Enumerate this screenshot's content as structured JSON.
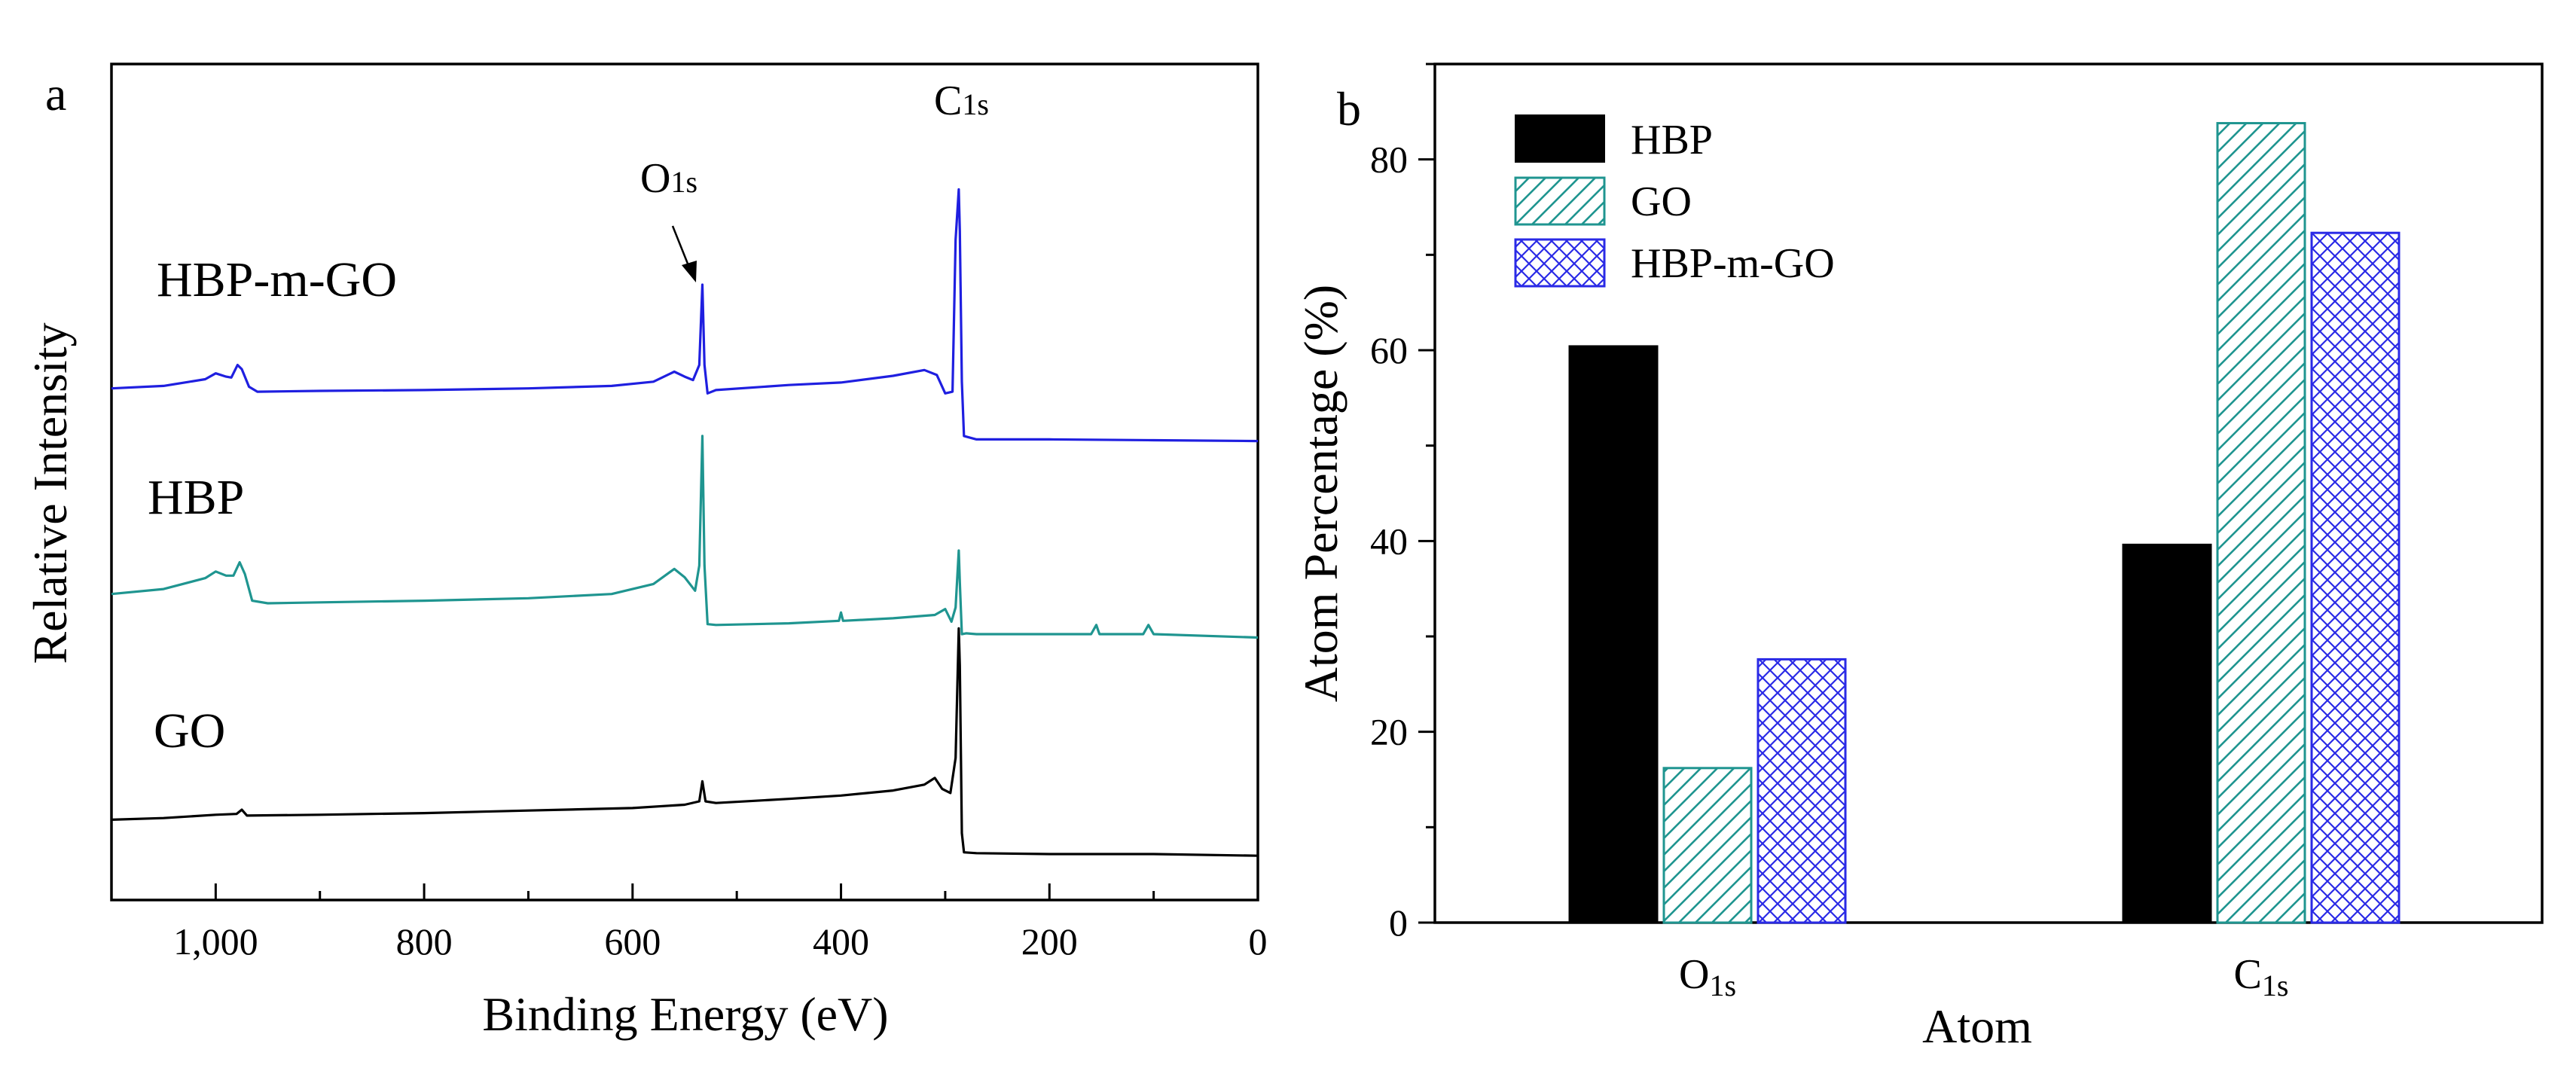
{
  "chart_data": [
    {
      "panel_label": "a",
      "type": "line",
      "title": "",
      "xlabel": "Binding Energy (eV)",
      "ylabel": "Relative Intensity",
      "xlim": [
        1100,
        0
      ],
      "ylim": [
        0,
        100
      ],
      "x_reversed": true,
      "x_ticks": [
        1000,
        800,
        600,
        400,
        200,
        0
      ],
      "x_tick_labels": [
        "1,000",
        "800",
        "600",
        "400",
        "200",
        "0"
      ],
      "peak_labels": [
        {
          "name": "O",
          "sub": "1s",
          "x": 532
        },
        {
          "name": "C",
          "sub": "1s",
          "x": 285
        }
      ],
      "series": [
        {
          "name": "HBP-m-GO",
          "color": "#1f1fe0",
          "points": [
            [
              1100,
              61.2
            ],
            [
              1050,
              61.5
            ],
            [
              1010,
              62.3
            ],
            [
              1000,
              63
            ],
            [
              990,
              62.6
            ],
            [
              985,
              62.5
            ],
            [
              979,
              64
            ],
            [
              975,
              63.5
            ],
            [
              968,
              61.4
            ],
            [
              960,
              60.8
            ],
            [
              900,
              60.9
            ],
            [
              800,
              61
            ],
            [
              700,
              61.2
            ],
            [
              620,
              61.5
            ],
            [
              580,
              62
            ],
            [
              560,
              63.2
            ],
            [
              550,
              62.6
            ],
            [
              542,
              62.2
            ],
            [
              536,
              64
            ],
            [
              533,
              73.6
            ],
            [
              531,
              64
            ],
            [
              528,
              60.6
            ],
            [
              520,
              61
            ],
            [
              450,
              61.6
            ],
            [
              400,
              61.9
            ],
            [
              350,
              62.7
            ],
            [
              320,
              63.4
            ],
            [
              308,
              62.8
            ],
            [
              300,
              60.6
            ],
            [
              293,
              60.8
            ],
            [
              290,
              79
            ],
            [
              287,
              85
            ],
            [
              286,
              80
            ],
            [
              284,
              62
            ],
            [
              282,
              55.5
            ],
            [
              270,
              55.1
            ],
            [
              250,
              55.1
            ],
            [
              200,
              55.1
            ],
            [
              100,
              55.0
            ],
            [
              0,
              54.9
            ]
          ]
        },
        {
          "name": "HBP",
          "color": "#1f9590",
          "points": [
            [
              1100,
              36.6
            ],
            [
              1050,
              37.2
            ],
            [
              1010,
              38.5
            ],
            [
              1000,
              39.3
            ],
            [
              990,
              38.8
            ],
            [
              983,
              38.8
            ],
            [
              977,
              40.4
            ],
            [
              972,
              39
            ],
            [
              965,
              35.8
            ],
            [
              950,
              35.5
            ],
            [
              900,
              35.6
            ],
            [
              800,
              35.8
            ],
            [
              700,
              36.1
            ],
            [
              620,
              36.6
            ],
            [
              580,
              37.8
            ],
            [
              560,
              39.6
            ],
            [
              550,
              38.6
            ],
            [
              540,
              37
            ],
            [
              536,
              40
            ],
            [
              533,
              55.5
            ],
            [
              531,
              40
            ],
            [
              528,
              33
            ],
            [
              520,
              32.9
            ],
            [
              450,
              33.1
            ],
            [
              402,
              33.4
            ],
            [
              400,
              34.4
            ],
            [
              398,
              33.4
            ],
            [
              350,
              33.7
            ],
            [
              310,
              34.1
            ],
            [
              300,
              34.8
            ],
            [
              294,
              33.3
            ],
            [
              290,
              35
            ],
            [
              287,
              41.8
            ],
            [
              286,
              38
            ],
            [
              284,
              31.8
            ],
            [
              280,
              31.9
            ],
            [
              270,
              31.8
            ],
            [
              200,
              31.8
            ],
            [
              160,
              31.8
            ],
            [
              155,
              32.9
            ],
            [
              152,
              31.8
            ],
            [
              110,
              31.8
            ],
            [
              105,
              32.9
            ],
            [
              100,
              31.8
            ],
            [
              0,
              31.4
            ]
          ]
        },
        {
          "name": "GO",
          "color": "#000000",
          "points": [
            [
              1100,
              9.6
            ],
            [
              1050,
              9.8
            ],
            [
              1000,
              10.2
            ],
            [
              980,
              10.3
            ],
            [
              975,
              10.8
            ],
            [
              970,
              10.1
            ],
            [
              900,
              10.2
            ],
            [
              800,
              10.4
            ],
            [
              700,
              10.7
            ],
            [
              600,
              11
            ],
            [
              550,
              11.4
            ],
            [
              536,
              11.8
            ],
            [
              533,
              14.2
            ],
            [
              530,
              11.8
            ],
            [
              520,
              11.6
            ],
            [
              450,
              12.1
            ],
            [
              400,
              12.5
            ],
            [
              350,
              13.1
            ],
            [
              320,
              13.8
            ],
            [
              310,
              14.6
            ],
            [
              303,
              13.3
            ],
            [
              295,
              12.8
            ],
            [
              290,
              17
            ],
            [
              287,
              32.5
            ],
            [
              286,
              28
            ],
            [
              284,
              8
            ],
            [
              282,
              5.7
            ],
            [
              270,
              5.6
            ],
            [
              200,
              5.5
            ],
            [
              100,
              5.5
            ],
            [
              0,
              5.3
            ]
          ]
        }
      ]
    },
    {
      "panel_label": "b",
      "type": "bar",
      "title": "",
      "xlabel": "Atom",
      "ylabel": "Atom Percentage (%)",
      "ylim": [
        0,
        90
      ],
      "y_ticks": [
        0,
        20,
        40,
        60,
        80
      ],
      "categories": [
        {
          "name": "O",
          "sub": "1s"
        },
        {
          "name": "C",
          "sub": "1s"
        }
      ],
      "series": [
        {
          "name": "HBP",
          "values": [
            60.4,
            39.6
          ],
          "color": "#000000",
          "pattern": "solid"
        },
        {
          "name": "GO",
          "values": [
            16.2,
            83.8
          ],
          "color": "#1f9590",
          "pattern": "diagonal"
        },
        {
          "name": "HBP-m-GO",
          "values": [
            27.6,
            72.3
          ],
          "color": "#2a2ae6",
          "pattern": "crosshatch"
        }
      ],
      "legend_position": "top-left"
    }
  ]
}
